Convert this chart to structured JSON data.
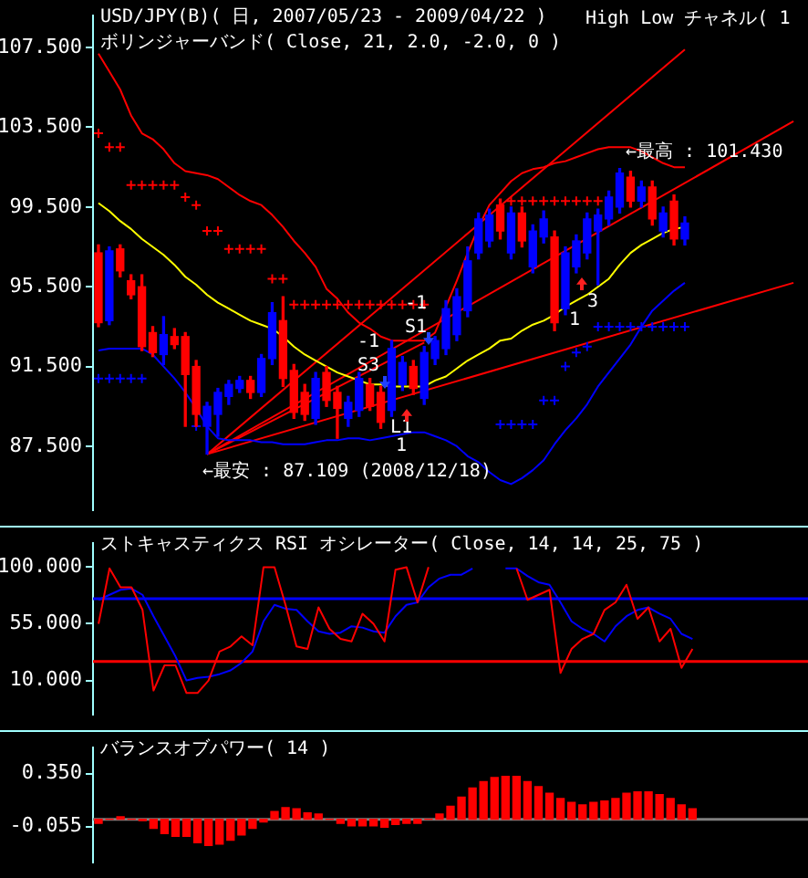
{
  "chart_data": [
    {
      "type": "candlestick",
      "title": "USD/JPY(B)( 日, 2007/05/23 - 2009/04/22 )",
      "subtitle": "ボリンジャーバンド( Close, 21, 2.0, -2.0, 0 )",
      "categories": [
        null,
        null,
        null,
        null,
        null,
        null,
        null,
        null,
        null,
        null,
        null,
        null,
        null,
        null,
        null,
        null,
        null,
        null,
        null,
        null,
        null,
        null,
        null,
        null,
        null,
        null,
        null,
        null,
        null,
        null,
        null,
        null,
        null,
        null,
        null,
        null,
        null,
        null,
        null,
        null,
        null,
        null,
        null,
        null,
        null,
        null,
        null,
        null,
        null,
        null,
        null,
        null,
        null,
        null,
        null,
        null,
        null,
        null,
        null,
        null,
        null,
        null,
        null,
        null,
        null
      ],
      "ohlc": [
        [
          97.2,
          97.6,
          93.5,
          93.7
        ],
        [
          93.8,
          97.5,
          93.6,
          97.3
        ],
        [
          97.4,
          97.6,
          96.0,
          96.3
        ],
        [
          95.8,
          96.1,
          94.9,
          95.1
        ],
        [
          95.5,
          96.1,
          92.3,
          92.5
        ],
        [
          93.2,
          93.5,
          92.0,
          92.2
        ],
        [
          92.1,
          94.0,
          91.6,
          93.1
        ],
        [
          93.0,
          93.4,
          92.4,
          92.6
        ],
        [
          93.0,
          93.2,
          88.5,
          91.1
        ],
        [
          91.5,
          91.8,
          88.5,
          89.1
        ],
        [
          88.5,
          89.7,
          87.109,
          89.5
        ],
        [
          89.1,
          90.4,
          88.0,
          90.2
        ],
        [
          90.0,
          90.8,
          89.6,
          90.6
        ],
        [
          90.4,
          91.0,
          90.2,
          90.8
        ],
        [
          90.8,
          91.0,
          89.9,
          90.2
        ],
        [
          90.2,
          92.1,
          90.0,
          91.9
        ],
        [
          91.9,
          94.7,
          91.6,
          94.2
        ],
        [
          93.8,
          95.0,
          90.5,
          90.9
        ],
        [
          91.3,
          91.6,
          88.9,
          89.2
        ],
        [
          90.2,
          90.6,
          88.8,
          89.1
        ],
        [
          88.9,
          91.2,
          88.6,
          90.9
        ],
        [
          91.2,
          91.5,
          89.5,
          89.8
        ],
        [
          90.2,
          90.5,
          87.9,
          89.4
        ],
        [
          88.9,
          90.0,
          88.5,
          89.7
        ],
        [
          89.3,
          91.2,
          89.0,
          90.9
        ],
        [
          90.6,
          90.9,
          89.3,
          89.5
        ],
        [
          90.2,
          90.5,
          88.4,
          88.7
        ],
        [
          89.3,
          92.8,
          89.0,
          92.4
        ],
        [
          90.6,
          92.0,
          90.3,
          91.7
        ],
        [
          91.5,
          91.8,
          90.1,
          90.4
        ],
        [
          89.9,
          92.5,
          89.6,
          92.2
        ],
        [
          91.9,
          93.0,
          91.6,
          92.8
        ],
        [
          92.4,
          94.8,
          92.1,
          94.4
        ],
        [
          93.1,
          95.4,
          92.8,
          95.0
        ],
        [
          94.3,
          97.5,
          94.0,
          96.8
        ],
        [
          97.2,
          99.2,
          96.9,
          98.9
        ],
        [
          97.8,
          99.4,
          97.5,
          99.1
        ],
        [
          99.6,
          99.9,
          97.9,
          98.3
        ],
        [
          97.2,
          99.5,
          96.9,
          99.2
        ],
        [
          99.2,
          99.5,
          97.5,
          97.8
        ],
        [
          96.5,
          98.6,
          96.2,
          98.3
        ],
        [
          98.0,
          99.3,
          97.7,
          98.9
        ],
        [
          98.0,
          98.3,
          93.3,
          93.7
        ],
        [
          94.4,
          97.5,
          94.1,
          97.2
        ],
        [
          96.5,
          98.1,
          96.2,
          97.8
        ],
        [
          97.2,
          99.2,
          96.9,
          98.9
        ],
        [
          98.3,
          99.4,
          95.6,
          99.1
        ],
        [
          98.9,
          100.3,
          98.6,
          100.0
        ],
        [
          99.5,
          101.43,
          99.2,
          101.2
        ],
        [
          101.0,
          101.3,
          99.5,
          99.8
        ],
        [
          99.8,
          100.8,
          99.5,
          100.5
        ],
        [
          100.5,
          100.8,
          98.6,
          98.9
        ],
        [
          98.3,
          99.5,
          98.0,
          99.2
        ],
        [
          99.8,
          100.1,
          97.6,
          97.9
        ],
        [
          97.9,
          99.0,
          97.6,
          98.7
        ],
        null,
        null,
        null,
        null,
        null,
        null,
        null,
        null,
        null,
        null
      ],
      "colors": [
        "#ff0000",
        "#0000ff",
        "#ff0000",
        "#ff0000",
        "#ff0000",
        "#ff0000",
        "#0000ff",
        "#ff0000",
        "#ff0000",
        "#ff0000",
        "#0000ff",
        "#0000ff",
        "#0000ff",
        "#0000ff",
        "#ff0000",
        "#0000ff",
        "#0000ff",
        "#ff0000",
        "#ff0000",
        "#ff0000",
        "#0000ff",
        "#ff0000",
        "#ff0000",
        "#0000ff",
        "#0000ff",
        "#ff0000",
        "#ff0000",
        "#0000ff",
        "#0000ff",
        "#ff0000",
        "#0000ff",
        "#0000ff",
        "#0000ff",
        "#0000ff",
        "#0000ff",
        "#0000ff",
        "#0000ff",
        "#ff0000",
        "#0000ff",
        "#ff0000",
        "#0000ff",
        "#0000ff",
        "#ff0000",
        "#0000ff",
        "#0000ff",
        "#0000ff",
        "#0000ff",
        "#0000ff",
        "#0000ff",
        "#ff0000",
        "#0000ff",
        "#ff0000",
        "#0000ff",
        "#ff0000",
        "#0000ff",
        null,
        null,
        null,
        null,
        null,
        null,
        null,
        null,
        null,
        null
      ],
      "series": [
        {
          "type": "line",
          "color": "#ff0000",
          "values": [
            107.2,
            106.3,
            105.4,
            104.1,
            103.2,
            102.9,
            102.4,
            101.7,
            101.3,
            101.2,
            101.1,
            100.9,
            100.5,
            100.1,
            99.8,
            99.6,
            99.1,
            98.5,
            97.8,
            97.2,
            96.5,
            95.4,
            94.9,
            94.2,
            93.7,
            93.4,
            93.0,
            92.8,
            92.8,
            92.8,
            92.8,
            93.2,
            94.5,
            95.8,
            97.2,
            98.5,
            99.6,
            100.2,
            100.8,
            101.2,
            101.4,
            101.5,
            101.7,
            101.8,
            102.0,
            102.2,
            102.4,
            102.5,
            102.5,
            102.5,
            102.3,
            102.0,
            101.7,
            101.5,
            101.5,
            null,
            null,
            null,
            null,
            null,
            null,
            null,
            null,
            null,
            null
          ]
        },
        {
          "type": "line",
          "color": "#ffff00",
          "values": [
            99.7,
            99.3,
            98.8,
            98.4,
            97.9,
            97.5,
            97.1,
            96.6,
            96.0,
            95.6,
            95.1,
            94.7,
            94.4,
            94.1,
            93.8,
            93.6,
            93.4,
            93.0,
            92.5,
            92.1,
            91.8,
            91.5,
            91.2,
            91.0,
            90.8,
            90.6,
            90.6,
            90.5,
            90.5,
            90.5,
            90.5,
            90.8,
            91.0,
            91.4,
            91.8,
            92.1,
            92.4,
            92.8,
            92.9,
            93.3,
            93.6,
            93.8,
            94.1,
            94.5,
            94.8,
            95.1,
            95.5,
            95.9,
            96.6,
            97.2,
            97.6,
            97.9,
            98.2,
            98.4,
            98.5,
            null,
            null,
            null,
            null,
            null,
            null,
            null,
            null,
            null,
            null
          ]
        },
        {
          "type": "line",
          "color": "#0000ff",
          "values": [
            92.3,
            92.4,
            92.4,
            92.4,
            92.4,
            92.1,
            91.5,
            90.9,
            90.2,
            89.4,
            88.5,
            87.9,
            87.8,
            87.8,
            87.8,
            87.7,
            87.7,
            87.6,
            87.6,
            87.6,
            87.7,
            87.8,
            87.8,
            87.9,
            87.9,
            87.8,
            87.9,
            88.0,
            88.1,
            88.2,
            88.2,
            88.0,
            87.8,
            87.5,
            87.0,
            86.7,
            86.2,
            85.8,
            85.6,
            85.9,
            86.3,
            86.8,
            87.6,
            88.3,
            88.9,
            89.6,
            90.5,
            91.2,
            91.9,
            92.6,
            93.5,
            94.3,
            94.8,
            95.3,
            95.7,
            null,
            null,
            null,
            null,
            null,
            null,
            null,
            null,
            null,
            null
          ]
        },
        {
          "type": "scatter",
          "marker": "cross",
          "color": "#ff0000",
          "values": [
            103.2,
            102.5,
            102.5,
            100.6,
            100.6,
            100.6,
            100.6,
            100.6,
            100.0,
            99.6,
            98.3,
            98.3,
            97.4,
            97.4,
            97.4,
            97.4,
            95.9,
            95.9,
            94.6,
            94.6,
            94.6,
            94.6,
            94.6,
            94.6,
            94.6,
            94.6,
            94.6,
            94.6,
            94.6,
            94.6,
            94.6,
            null,
            null,
            null,
            null,
            null,
            null,
            null,
            99.8,
            99.8,
            99.8,
            99.8,
            99.8,
            99.8,
            99.8,
            99.8,
            99.8,
            null,
            null,
            null,
            null,
            null,
            null,
            null,
            null,
            null,
            null,
            null,
            null,
            null,
            null,
            null,
            null,
            null,
            null
          ]
        },
        {
          "type": "scatter",
          "marker": "cross",
          "color": "#0000ff",
          "values": [
            90.9,
            90.9,
            90.9,
            90.9,
            90.9,
            null,
            null,
            null,
            null,
            88.5,
            null,
            null,
            null,
            null,
            null,
            null,
            null,
            null,
            null,
            null,
            null,
            null,
            null,
            null,
            null,
            null,
            null,
            null,
            null,
            null,
            null,
            null,
            null,
            null,
            null,
            null,
            null,
            88.6,
            88.6,
            88.6,
            88.6,
            89.8,
            89.8,
            91.5,
            92.2,
            92.5,
            93.5,
            93.5,
            93.5,
            93.5,
            93.5,
            93.5,
            93.5,
            93.5,
            93.5,
            null,
            null,
            null,
            null,
            null,
            null,
            null,
            null,
            null,
            null
          ]
        },
        {
          "type": "line",
          "color": "#ff0000",
          "values": [
            null,
            null,
            null,
            null,
            null,
            null,
            null,
            null,
            null,
            null,
            87.1,
            null,
            null,
            null,
            null,
            null,
            null,
            null,
            null,
            null,
            null,
            null,
            null,
            null,
            null,
            null,
            null,
            null,
            null,
            null,
            null,
            null,
            null,
            null,
            null,
            null,
            null,
            null,
            null,
            null,
            null,
            null,
            null,
            null,
            null,
            null,
            null,
            null,
            null,
            null,
            null,
            null,
            null,
            null,
            107.4,
            null,
            null,
            null,
            null,
            null,
            null,
            null,
            null,
            null,
            null
          ]
        },
        {
          "type": "line",
          "color": "#ff0000",
          "values": [
            null,
            null,
            null,
            null,
            null,
            null,
            null,
            null,
            null,
            null,
            87.1,
            null,
            null,
            null,
            null,
            null,
            null,
            null,
            null,
            null,
            null,
            null,
            null,
            null,
            null,
            null,
            null,
            null,
            null,
            null,
            null,
            null,
            null,
            null,
            null,
            null,
            null,
            null,
            null,
            null,
            null,
            null,
            null,
            null,
            null,
            null,
            null,
            null,
            null,
            null,
            null,
            null,
            null,
            null,
            null,
            null,
            null,
            null,
            null,
            null,
            null,
            null,
            null,
            null,
            103.8
          ]
        },
        {
          "type": "line",
          "color": "#ff0000",
          "values": [
            null,
            null,
            null,
            null,
            null,
            null,
            null,
            null,
            null,
            null,
            87.1,
            null,
            null,
            null,
            null,
            null,
            null,
            null,
            null,
            null,
            null,
            null,
            null,
            null,
            null,
            null,
            null,
            null,
            null,
            null,
            null,
            null,
            null,
            null,
            null,
            null,
            null,
            null,
            null,
            null,
            null,
            null,
            null,
            null,
            null,
            null,
            null,
            null,
            null,
            null,
            null,
            null,
            null,
            null,
            null,
            null,
            null,
            null,
            null,
            null,
            null,
            null,
            null,
            null,
            95.7
          ]
        },
        {
          "type": "line",
          "color": "#ff0000",
          "values": [
            null,
            null,
            null,
            null,
            null,
            null,
            null,
            null,
            null,
            null,
            87.1,
            null,
            null,
            null,
            null,
            null,
            null,
            null,
            null,
            null,
            null,
            null,
            null,
            null,
            null,
            null,
            null,
            null,
            null,
            null,
            92.7,
            null,
            null,
            null,
            null,
            null,
            null,
            null,
            null,
            null,
            null,
            null,
            null,
            null,
            null,
            null,
            null,
            null,
            null,
            null,
            null,
            null,
            null,
            null,
            null,
            null,
            null,
            null,
            null,
            null,
            null,
            null,
            null,
            null,
            null
          ]
        }
      ],
      "ylim": [
        84.3,
        109.1
      ],
      "yticks": [
        {
          "value": 87.5,
          "label": "87.500"
        },
        {
          "value": 91.5,
          "label": "91.500"
        },
        {
          "value": 95.5,
          "label": "95.500"
        },
        {
          "value": 99.5,
          "label": "99.500"
        },
        {
          "value": 103.5,
          "label": "103.500"
        },
        {
          "value": 107.5,
          "label": "107.500"
        }
      ],
      "tick_labels": "y",
      "annotations": [
        "←最高 : 101.430",
        "←最安 : 87.109 (2008/12/18)",
        "-1",
        "S1",
        "-1",
        "S3",
        "L1",
        "1",
        "3",
        "1",
        "High Low チャネル( 1"
      ]
    },
    {
      "type": "line",
      "title": "ストキャスティクス RSI オシレーター( Close, 14, 14, 25, 75 )",
      "categories": [
        null,
        null,
        null,
        null,
        null,
        null,
        null,
        null,
        null,
        null,
        null,
        null,
        null,
        null,
        null,
        null,
        null,
        null,
        null,
        null,
        null,
        null,
        null,
        null,
        null,
        null,
        null,
        null,
        null,
        null,
        null,
        null,
        null,
        null,
        null,
        null,
        null,
        null,
        null,
        null,
        null,
        null,
        null,
        null,
        null,
        null,
        null,
        null,
        null,
        null,
        null,
        null,
        null,
        null,
        null,
        null,
        null,
        null,
        null,
        null,
        null,
        null,
        null,
        null,
        null
      ],
      "series": [
        {
          "color": "#ff0000",
          "values": [
            55,
            99,
            84,
            84,
            66,
            2,
            22,
            22,
            0,
            0,
            10,
            33,
            37,
            45,
            38,
            100,
            100,
            70,
            37,
            35,
            68,
            51,
            43,
            41,
            63,
            55,
            41,
            98,
            100,
            72,
            100,
            null,
            null,
            null,
            null,
            null,
            null,
            null,
            null,
            null,
            null,
            null,
            null,
            null,
            null,
            null,
            null,
            null,
            null,
            null,
            null,
            null,
            null,
            null,
            null,
            null,
            null,
            null,
            null,
            null,
            null,
            null,
            null,
            null,
            null
          ]
        },
        {
          "color": "#ff0000",
          "values": [
            null,
            null,
            null,
            null,
            null,
            null,
            null,
            null,
            null,
            null,
            null,
            null,
            null,
            null,
            null,
            null,
            null,
            null,
            null,
            null,
            null,
            null,
            null,
            null,
            null,
            null,
            null,
            null,
            null,
            null,
            null,
            null,
            null,
            null,
            null,
            null,
            null,
            null,
            99,
            74,
            78,
            82,
            16,
            35,
            43,
            47,
            66,
            72,
            86,
            59,
            68,
            41,
            51,
            20,
            35,
            null,
            null,
            null,
            null,
            null,
            null,
            null,
            null,
            null,
            null
          ]
        },
        {
          "color": "#0000ff",
          "values": [
            74,
            78,
            82,
            83,
            78,
            61,
            45,
            29,
            10,
            12,
            13,
            15,
            18,
            24,
            33,
            57,
            70,
            67,
            66,
            57,
            49,
            47,
            48,
            53,
            52,
            49,
            48,
            61,
            70,
            72,
            84,
            91,
            94,
            94,
            99,
            null,
            null,
            null,
            null,
            null,
            null,
            null,
            null,
            null,
            null,
            null,
            null,
            null,
            null,
            null,
            null,
            null,
            null,
            null,
            null,
            null,
            null,
            null,
            null,
            null,
            null,
            null,
            null,
            null,
            null
          ]
        },
        {
          "color": "#0000ff",
          "values": [
            null,
            null,
            null,
            null,
            null,
            null,
            null,
            null,
            null,
            null,
            null,
            null,
            null,
            null,
            null,
            null,
            null,
            null,
            null,
            null,
            null,
            null,
            null,
            null,
            null,
            null,
            null,
            null,
            null,
            null,
            null,
            null,
            null,
            null,
            null,
            null,
            null,
            99,
            99,
            93,
            88,
            86,
            72,
            57,
            51,
            47,
            41,
            53,
            61,
            66,
            68,
            63,
            59,
            47,
            43,
            null,
            null,
            null,
            null,
            null,
            null,
            null,
            null,
            null,
            null
          ]
        }
      ],
      "ylim": [
        -17,
        119
      ],
      "yticks": [
        {
          "value": 10,
          "label": "10.000"
        },
        {
          "value": 55,
          "label": "55.000"
        },
        {
          "value": 100,
          "label": "100.000"
        }
      ],
      "ref_lines": [
        {
          "axis": "y",
          "value": 75,
          "color": "#0000ff"
        },
        {
          "axis": "y",
          "value": 25,
          "color": "#ff0000"
        }
      ],
      "tick_labels": "y"
    },
    {
      "type": "bar",
      "title": "バランスオブパワー( 14 )",
      "categories": [
        null,
        null,
        null,
        null,
        null,
        null,
        null,
        null,
        null,
        null,
        null,
        null,
        null,
        null,
        null,
        null,
        null,
        null,
        null,
        null,
        null,
        null,
        null,
        null,
        null,
        null,
        null,
        null,
        null,
        null,
        null,
        null,
        null,
        null,
        null,
        null,
        null,
        null,
        null,
        null,
        null,
        null,
        null,
        null,
        null,
        null,
        null,
        null,
        null,
        null,
        null,
        null,
        null,
        null,
        null,
        null,
        null,
        null,
        null,
        null,
        null,
        null,
        null,
        null,
        null
      ],
      "values": [
        -0.03,
        0,
        0.02,
        0,
        -0.01,
        -0.07,
        -0.11,
        -0.13,
        -0.13,
        -0.18,
        -0.2,
        -0.19,
        -0.16,
        -0.12,
        -0.07,
        -0.02,
        0.06,
        0.09,
        0.08,
        0.05,
        0.04,
        0,
        -0.03,
        -0.05,
        -0.05,
        -0.05,
        -0.06,
        -0.04,
        -0.03,
        -0.03,
        0,
        0.04,
        0.1,
        0.17,
        0.24,
        0.29,
        0.32,
        0.33,
        0.33,
        0.29,
        0.25,
        0.2,
        0.16,
        0.13,
        0.11,
        0.13,
        0.14,
        0.16,
        0.2,
        0.21,
        0.21,
        0.19,
        0.16,
        0.11,
        0.08,
        null,
        null,
        null,
        null,
        null,
        null,
        null,
        null,
        null,
        null
      ],
      "color": "#ff0000",
      "ylim": [
        -0.33,
        0.55
      ],
      "yticks": [
        {
          "value": -0.055,
          "label": "-0.055"
        },
        {
          "value": 0.35,
          "label": "0.350"
        }
      ],
      "ref_lines": [
        {
          "axis": "y",
          "value": 0,
          "color": "#808080"
        }
      ],
      "tick_labels": "y"
    }
  ]
}
